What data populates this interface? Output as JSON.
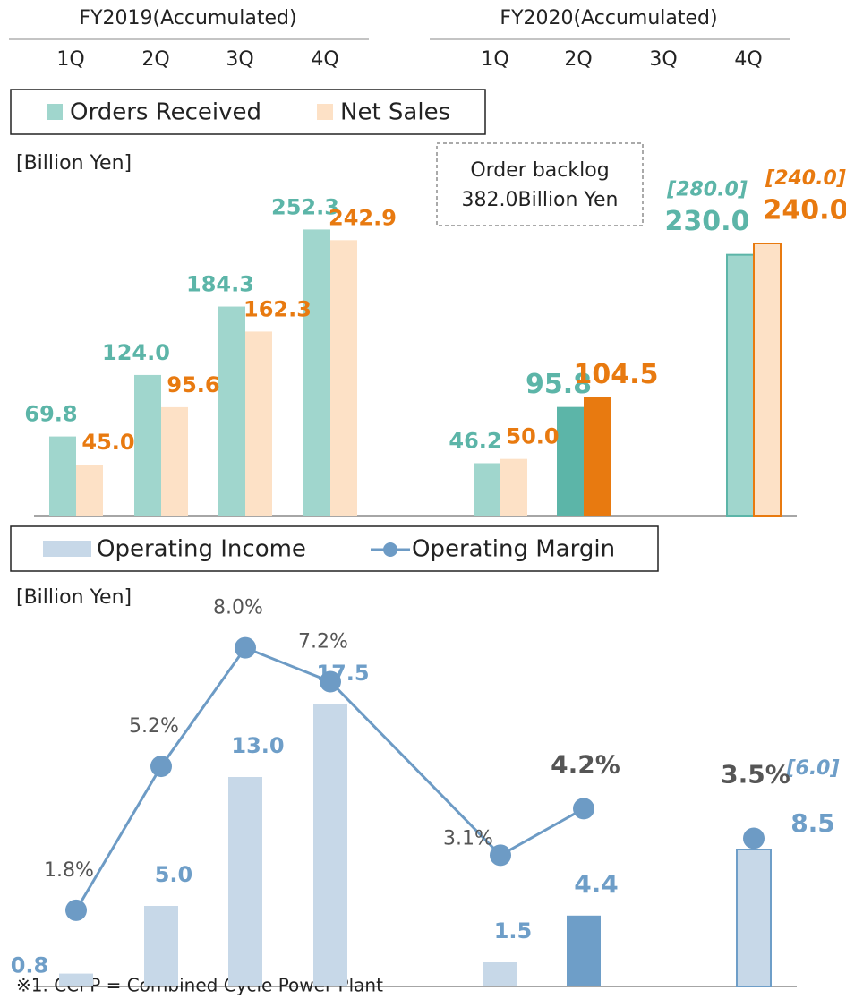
{
  "header": {
    "groups": [
      "FY2019(Accumulated)",
      "FY2020(Accumulated)"
    ],
    "categories": [
      "1Q",
      "2Q",
      "3Q",
      "4Q",
      "1Q",
      "2Q",
      "3Q",
      "4Q"
    ]
  },
  "chart_data": [
    {
      "type": "bar",
      "y_label": "[Billion Yen]",
      "ylim": [
        0,
        300
      ],
      "highlight_index": 5,
      "forecast_index": 7,
      "annotation": [
        "Order backlog",
        "382.0Billion Yen"
      ],
      "series": [
        {
          "name": "Orders Received",
          "color": "#a0d6cd",
          "highlight_color": "#5cb5a8",
          "label_color": "#5cb5a8",
          "values": [
            69.8,
            124.0,
            184.3,
            252.3,
            46.2,
            95.8,
            null,
            230.0
          ],
          "value_labels": [
            "69.8",
            "124.0",
            "184.3",
            "252.3",
            "46.2",
            "95.8",
            null,
            "230.0"
          ],
          "forecast_value": 280.0,
          "forecast_label": "[280.0]"
        },
        {
          "name": "Net Sales",
          "color": "#fde1c6",
          "highlight_color": "#e87a10",
          "label_color": "#e87a10",
          "values": [
            45.0,
            95.6,
            162.3,
            242.9,
            50.0,
            104.5,
            null,
            240.0
          ],
          "value_labels": [
            "45.0",
            "95.6",
            "162.3",
            "242.9",
            "50.0",
            "104.5",
            null,
            "240.0"
          ],
          "forecast_value": 240.0,
          "forecast_label": "[240.0]"
        }
      ]
    },
    {
      "type": "bar_line",
      "y_label": "[Billion Yen]",
      "ylim": [
        0,
        20
      ],
      "y2lim": [
        0,
        8.5
      ],
      "highlight_index": 5,
      "forecast_index": 7,
      "series": [
        {
          "name": "Operating Income",
          "color": "#c7d8e8",
          "highlight_color": "#6e9ec8",
          "label_color": "#6e9ec8",
          "values": [
            0.8,
            5.0,
            13.0,
            17.5,
            1.5,
            4.4,
            null,
            8.5
          ],
          "value_labels": [
            "0.8",
            "5.0",
            "13.0",
            "17.5",
            "1.5",
            "4.4",
            null,
            "8.5"
          ],
          "forecast_value": 6.0,
          "forecast_label": "[6.0]"
        },
        {
          "name": "Operating Margin",
          "axis": "y2",
          "color": "#6d9bc5",
          "label_color": "#555555",
          "values": [
            1.8,
            5.2,
            8.0,
            7.2,
            3.1,
            4.2,
            null,
            3.5
          ],
          "value_labels": [
            "1.8%",
            "5.2%",
            "8.0%",
            "7.2%",
            "3.1%",
            "4.2%",
            null,
            "3.5%"
          ]
        }
      ]
    }
  ],
  "footnote": "※1. CCPP = Combined Cycle Power Plant"
}
